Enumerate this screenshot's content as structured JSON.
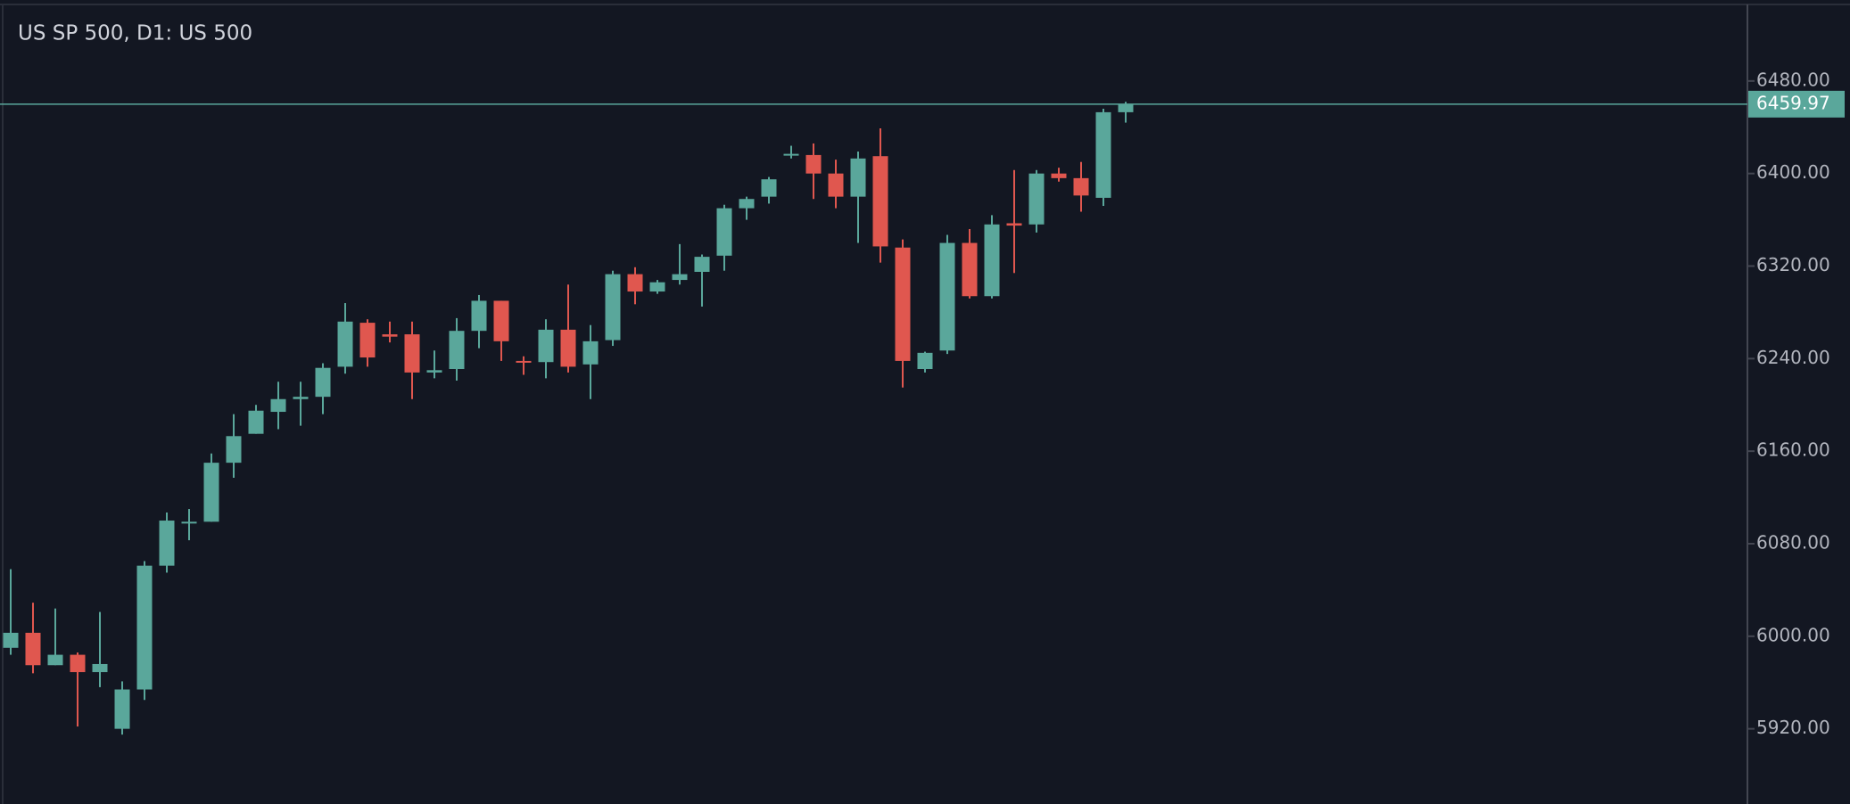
{
  "chart_data": {
    "type": "candlestick",
    "title": "US SP 500, D1: US 500",
    "up_color": "#5aa79b",
    "down_color": "#e0574f",
    "ylim": [
      5855,
      6550
    ],
    "yticks": [
      {
        "value": 5920,
        "label": "5920.00"
      },
      {
        "value": 6000,
        "label": "6000.00"
      },
      {
        "value": 6080,
        "label": "6080.00"
      },
      {
        "value": 6160,
        "label": "6160.00"
      },
      {
        "value": 6240,
        "label": "6240.00"
      },
      {
        "value": 6320,
        "label": "6320.00"
      },
      {
        "value": 6400,
        "label": "6400.00"
      },
      {
        "value": 6480,
        "label": "6480.00"
      }
    ],
    "last_price": 6459.97,
    "open": [
      5990,
      6003,
      5975,
      5984,
      5969,
      5920,
      5954,
      6061,
      6098,
      6099,
      6150,
      6175,
      6194,
      6205,
      6207,
      6233,
      6271,
      6261,
      6261,
      6228,
      6231,
      6264,
      6290,
      6238,
      6237,
      6265,
      6235,
      6256,
      6313,
      6298,
      6308,
      6315,
      6329,
      6370,
      6380,
      6416,
      6416,
      6400,
      6380,
      6415,
      6336,
      6231,
      6247,
      6340,
      6294,
      6357,
      6356,
      6400,
      6396,
      6379,
      6453
    ],
    "high": [
      6058,
      6029,
      6024,
      5986,
      6021,
      5961,
      6065,
      6107,
      6110,
      6158,
      6192,
      6200,
      6220,
      6220,
      6236,
      6288,
      6274,
      6272,
      6272,
      6247,
      6275,
      6295,
      6290,
      6242,
      6274,
      6304,
      6269,
      6316,
      6319,
      6308,
      6339,
      6330,
      6373,
      6380,
      6397,
      6424,
      6426,
      6412,
      6419,
      6439,
      6343,
      6246,
      6347,
      6352,
      6364,
      6403,
      6403,
      6405,
      6410,
      6456,
      6462
    ],
    "low": [
      5984,
      5968,
      5975,
      5922,
      5956,
      5915,
      5945,
      6055,
      6083,
      6099,
      6137,
      6175,
      6179,
      6182,
      6192,
      6227,
      6233,
      6254,
      6205,
      6223,
      6221,
      6249,
      6238,
      6226,
      6223,
      6228,
      6205,
      6251,
      6287,
      6296,
      6304,
      6285,
      6316,
      6360,
      6374,
      6413,
      6378,
      6370,
      6340,
      6323,
      6215,
      6228,
      6244,
      6292,
      6292,
      6314,
      6349,
      6393,
      6367,
      6372,
      6444
    ],
    "close": [
      6003,
      5975,
      5984,
      5969,
      5976,
      5954,
      6061,
      6100,
      6099,
      6150,
      6173,
      6195,
      6205,
      6207,
      6232,
      6272,
      6241,
      6259,
      6228,
      6230,
      6264,
      6290,
      6255,
      6237,
      6265,
      6233,
      6255,
      6313,
      6298,
      6306,
      6313,
      6328,
      6370,
      6378,
      6395,
      6417,
      6400,
      6380,
      6413,
      6337,
      6238,
      6245,
      6340,
      6294,
      6356,
      6355,
      6400,
      6396,
      6381,
      6453,
      6459.97
    ]
  }
}
